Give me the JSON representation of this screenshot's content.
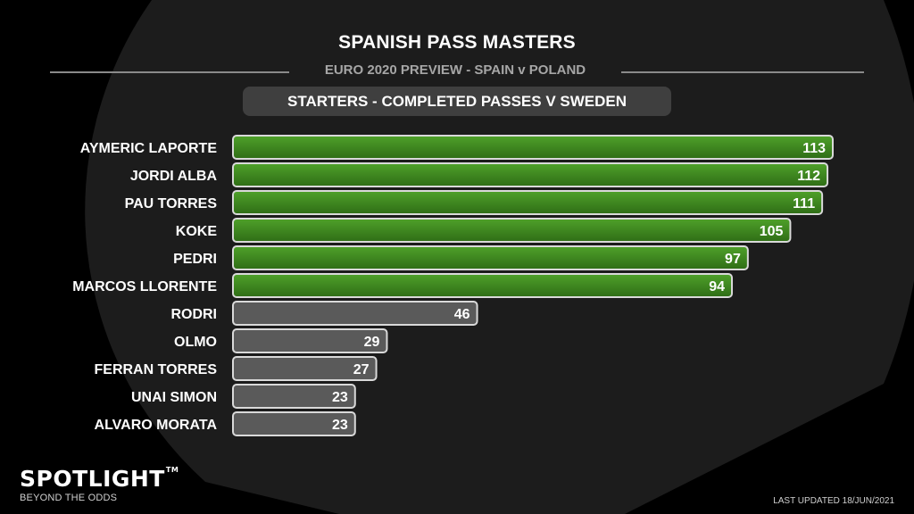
{
  "header": {
    "title": "SPANISH PASS MASTERS",
    "subtitle": "EURO 2020 PREVIEW - SPAIN v POLAND",
    "panel_label": "STARTERS - COMPLETED PASSES V SWEDEN"
  },
  "chart_data": {
    "type": "bar",
    "orientation": "horizontal",
    "title": "STARTERS - COMPLETED PASSES V SWEDEN",
    "xlabel": "",
    "ylabel": "",
    "xlim": [
      0,
      113
    ],
    "grid": false,
    "legend": "none",
    "categories": [
      "AYMERIC LAPORTE",
      "JORDI ALBA",
      "PAU TORRES",
      "KOKE",
      "PEDRI",
      "MARCOS LLORENTE",
      "RODRI",
      "OLMO",
      "FERRAN TORRES",
      "UNAI SIMON",
      "ALVARO MORATA"
    ],
    "values": [
      113,
      112,
      111,
      105,
      97,
      94,
      46,
      29,
      27,
      23,
      23
    ],
    "value_labels": [
      "113",
      "112",
      "111",
      "105",
      "97",
      "94",
      "46",
      "29",
      "27",
      "23",
      "23"
    ],
    "highlighted_count": 6,
    "colors": {
      "highlight_light": "#4fa12a",
      "highlight_dark": "#2f6d16",
      "other_bar": "#5a5a5a",
      "bar_border": "#d9d9d9"
    }
  },
  "branding": {
    "logo_text": "SPOTLIGHT",
    "logo_tm": "TM",
    "tagline": "BEYOND THE ODDS",
    "last_updated": "LAST UPDATED 18/JUN/2021"
  }
}
